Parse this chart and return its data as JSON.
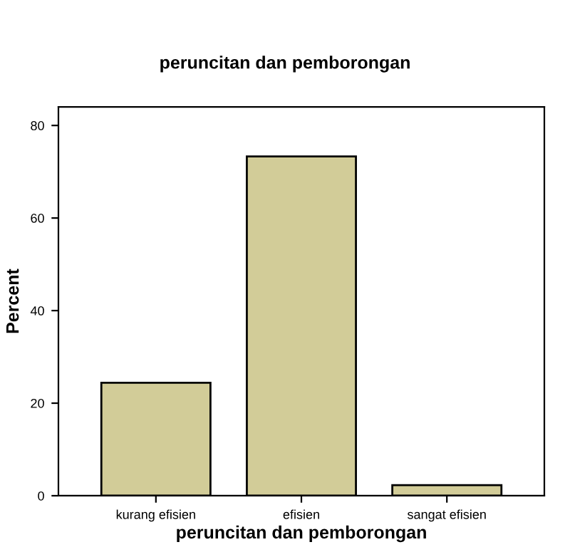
{
  "chart_data": {
    "type": "bar",
    "title": "peruncitan dan pemborongan",
    "xlabel": "peruncitan dan pemborongan",
    "ylabel": "Percent",
    "categories": [
      "kurang efisien",
      "efisien",
      "sangat efisien"
    ],
    "values": [
      24.4,
      73.3,
      2.3
    ],
    "color": "#d2cc98",
    "ylim": [
      0,
      84
    ],
    "yticks": [
      0,
      20,
      40,
      60,
      80
    ],
    "grid": false,
    "legend": false
  }
}
